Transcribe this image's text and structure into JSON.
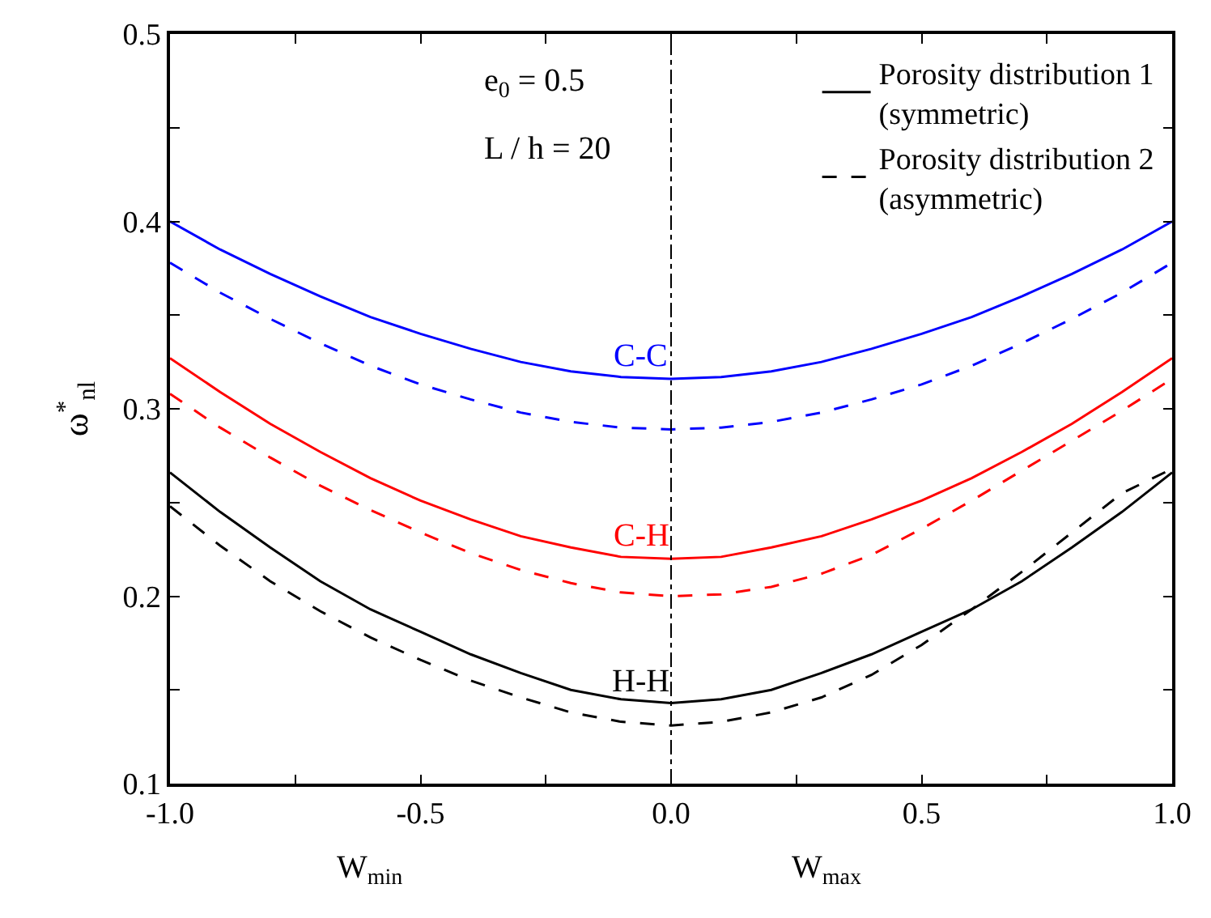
{
  "chart_data": {
    "type": "line",
    "ylabel": "ω$^{*}$$_{nl}$",
    "x": [
      -1.0,
      -0.9,
      -0.8,
      -0.7,
      -0.6,
      -0.5,
      -0.4,
      -0.3,
      -0.2,
      -0.1,
      0.0,
      0.1,
      0.2,
      0.3,
      0.4,
      0.5,
      0.6,
      0.7,
      0.8,
      0.9,
      1.0
    ],
    "series": [
      {
        "color": "#0000ff",
        "line_style": "solid",
        "values": [
          0.4,
          0.385,
          0.372,
          0.36,
          0.349,
          0.34,
          0.332,
          0.325,
          0.32,
          0.317,
          0.316,
          0.317,
          0.32,
          0.325,
          0.332,
          0.34,
          0.349,
          0.36,
          0.372,
          0.385,
          0.4
        ]
      },
      {
        "color": "#0000ff",
        "line_style": "dashed",
        "values": [
          0.378,
          0.362,
          0.348,
          0.335,
          0.323,
          0.313,
          0.305,
          0.298,
          0.293,
          0.29,
          0.289,
          0.29,
          0.293,
          0.298,
          0.305,
          0.313,
          0.323,
          0.335,
          0.348,
          0.362,
          0.378
        ]
      },
      {
        "color": "#ff0000",
        "line_style": "solid",
        "values": [
          0.327,
          0.309,
          0.292,
          0.277,
          0.263,
          0.251,
          0.241,
          0.232,
          0.226,
          0.221,
          0.22,
          0.221,
          0.226,
          0.232,
          0.241,
          0.251,
          0.263,
          0.277,
          0.292,
          0.309,
          0.327
        ]
      },
      {
        "color": "#ff0000",
        "line_style": "dashed",
        "values": [
          0.308,
          0.29,
          0.274,
          0.259,
          0.246,
          0.234,
          0.223,
          0.214,
          0.207,
          0.202,
          0.2,
          0.201,
          0.205,
          0.212,
          0.222,
          0.236,
          0.251,
          0.267,
          0.283,
          0.299,
          0.316
        ]
      },
      {
        "name": "Porosity distribution 1 (symmetric)",
        "color": "#000000",
        "line_style": "solid",
        "values": [
          0.266,
          0.245,
          0.226,
          0.208,
          0.193,
          0.181,
          0.169,
          0.159,
          0.15,
          0.145,
          0.143,
          0.145,
          0.15,
          0.159,
          0.169,
          0.181,
          0.193,
          0.208,
          0.226,
          0.245,
          0.266
        ]
      },
      {
        "name": "Porosity distribution 2 (asymmetric)",
        "color": "#000000",
        "line_style": "dashed",
        "values": [
          0.248,
          0.227,
          0.208,
          0.192,
          0.178,
          0.166,
          0.155,
          0.146,
          0.138,
          0.133,
          0.131,
          0.133,
          0.138,
          0.146,
          0.158,
          0.174,
          0.193,
          0.213,
          0.234,
          0.255,
          0.268
        ]
      }
    ],
    "annotations": [
      "C-C",
      "C-H",
      "H-H",
      "e$_{0}$ = 0.5",
      "L / h = 20",
      "W$_{min}$",
      "W$_{max}$"
    ],
    "ref_lines": [
      {
        "axis": "x",
        "value": 0.0,
        "color": "#000000",
        "line_style": "dashdot"
      }
    ],
    "xlim": [
      -1.0,
      1.0
    ],
    "ylim": [
      0.1,
      0.5
    ],
    "xticks": [
      {
        "value": -1.0,
        "label": "-1.0"
      },
      {
        "value": -0.75,
        "label": null
      },
      {
        "value": -0.5,
        "label": "-0.5"
      },
      {
        "value": -0.25,
        "label": null
      },
      {
        "value": 0.0,
        "label": "0.0"
      },
      {
        "value": 0.25,
        "label": null
      },
      {
        "value": 0.5,
        "label": "0.5"
      },
      {
        "value": 0.75,
        "label": null
      },
      {
        "value": 1.0,
        "label": "1.0"
      }
    ],
    "yticks": [
      0.1,
      {
        "value": 0.15,
        "label": null
      },
      0.2,
      {
        "value": 0.25,
        "label": null
      },
      0.3,
      {
        "value": 0.35,
        "label": null
      },
      0.4,
      {
        "value": 0.45,
        "label": null
      },
      0.5
    ],
    "legend": "top right",
    "marker": "none"
  }
}
